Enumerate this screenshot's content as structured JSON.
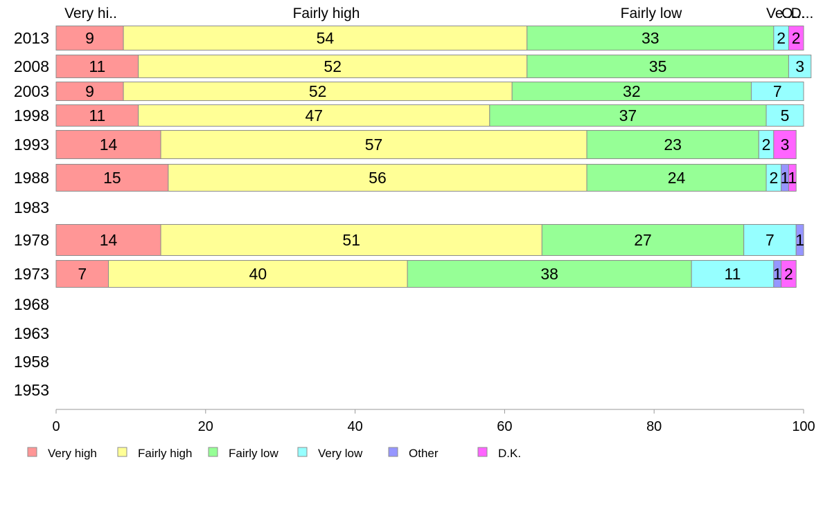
{
  "chart_data": {
    "type": "bar",
    "orientation": "horizontal",
    "stacked": true,
    "xlim": [
      0,
      100
    ],
    "xticks": [
      0,
      20,
      40,
      60,
      80,
      100
    ],
    "grid": false,
    "legend_position": "bottom",
    "top_labels": [
      "Very hi..",
      "Fairly high",
      "Fairly low",
      "Ve...",
      "O...",
      "D..."
    ],
    "categories": [
      "2013",
      "2008",
      "2003",
      "1998",
      "1993",
      "1988",
      "1983",
      "1978",
      "1973",
      "1968",
      "1963",
      "1958",
      "1953"
    ],
    "series": [
      {
        "name": "Very high",
        "color": "#FF9696",
        "values": [
          9,
          11,
          9,
          11,
          14,
          15,
          null,
          14,
          7,
          null,
          null,
          null,
          null
        ]
      },
      {
        "name": "Fairly high",
        "color": "#FFFF96",
        "values": [
          54,
          52,
          52,
          47,
          57,
          56,
          null,
          51,
          40,
          null,
          null,
          null,
          null
        ]
      },
      {
        "name": "Fairly low",
        "color": "#96FF96",
        "values": [
          33,
          35,
          32,
          37,
          23,
          24,
          null,
          27,
          38,
          null,
          null,
          null,
          null
        ]
      },
      {
        "name": "Very low",
        "color": "#96FFFF",
        "values": [
          2,
          3,
          7,
          5,
          2,
          2,
          null,
          7,
          11,
          null,
          null,
          null,
          null
        ]
      },
      {
        "name": "Other",
        "color": "#9696FF",
        "values": [
          0,
          0,
          0,
          0,
          0,
          1,
          null,
          1,
          1,
          null,
          null,
          null,
          null
        ]
      },
      {
        "name": "D.K.",
        "color": "#FF64FF",
        "values": [
          2,
          0,
          0,
          0,
          3,
          1,
          null,
          0,
          2,
          null,
          null,
          null,
          null
        ]
      }
    ],
    "label_values": [
      [
        "9",
        "54",
        "33",
        "2",
        "",
        "2"
      ],
      [
        "11",
        "52",
        "35",
        "3",
        "",
        ""
      ],
      [
        "9",
        "52",
        "32",
        "7",
        "",
        ""
      ],
      [
        "11",
        "47",
        "37",
        "5",
        "",
        ""
      ],
      [
        "14",
        "57",
        "23",
        "2",
        "",
        "3"
      ],
      [
        "15",
        "56",
        "24",
        "2",
        "1",
        "1"
      ],
      [
        "",
        "",
        "",
        "",
        "",
        ""
      ],
      [
        "14",
        "51",
        "27",
        "7",
        "1",
        ""
      ],
      [
        "7",
        "40",
        "38",
        "11",
        "1",
        "2"
      ],
      [
        "",
        "",
        "",
        "",
        "",
        ""
      ],
      [
        "",
        "",
        "",
        "",
        "",
        ""
      ],
      [
        "",
        "",
        "",
        "",
        "",
        ""
      ],
      [
        "",
        "",
        "",
        "",
        "",
        ""
      ]
    ]
  }
}
